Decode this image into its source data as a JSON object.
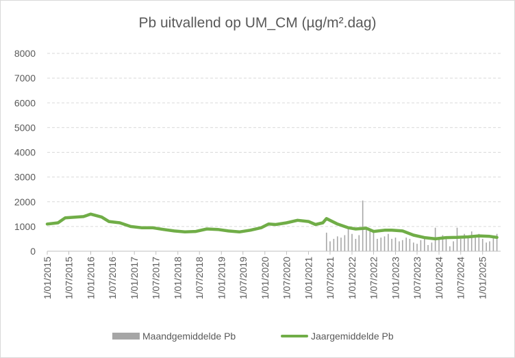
{
  "chart_data": {
    "type": "bar",
    "title": "Pb uitvallend op UM_CM (µg/m².dag)",
    "xlabel": "",
    "ylabel": "",
    "ylim": [
      0,
      8000
    ],
    "yticks": [
      0,
      1000,
      2000,
      3000,
      4000,
      5000,
      6000,
      7000,
      8000
    ],
    "x_range": [
      "2015-01-01",
      "2025-06-01"
    ],
    "xticks": [
      "2015-01-01",
      "2015-07-01",
      "2016-01-01",
      "2016-07-01",
      "2017-01-01",
      "2017-07-01",
      "2018-01-01",
      "2018-07-01",
      "2019-01-01",
      "2019-07-01",
      "2020-01-01",
      "2020-07-01",
      "2021-01-01",
      "2021-07-01",
      "2022-01-01",
      "2022-07-01",
      "2023-01-01",
      "2023-07-01",
      "2024-01-01",
      "2024-07-01",
      "2025-01-01"
    ],
    "xtick_labels": [
      "1/01/2015",
      "1/07/2015",
      "1/01/2016",
      "1/07/2016",
      "1/01/2017",
      "1/07/2017",
      "1/01/2018",
      "1/07/2018",
      "1/01/2019",
      "1/07/2019",
      "1/01/2020",
      "1/07/2020",
      "1/01/2021",
      "1/07/2021",
      "1/01/2022",
      "1/07/2022",
      "1/01/2023",
      "1/07/2023",
      "1/01/2024",
      "1/07/2024",
      "1/01/2025"
    ],
    "grid": true,
    "legend_position": "bottom",
    "series": [
      {
        "name": "Maandgemiddelde Pb",
        "kind": "bar",
        "color": "#a6a6a6",
        "x": [
          "2021-06-01",
          "2021-07-01",
          "2021-08-01",
          "2021-09-01",
          "2021-10-01",
          "2021-11-01",
          "2021-12-01",
          "2022-01-01",
          "2022-02-01",
          "2022-03-01",
          "2022-04-01",
          "2022-05-01",
          "2022-06-01",
          "2022-07-01",
          "2022-08-01",
          "2022-09-01",
          "2022-10-01",
          "2022-11-01",
          "2022-12-01",
          "2023-01-01",
          "2023-02-01",
          "2023-03-01",
          "2023-04-01",
          "2023-05-01",
          "2023-06-01",
          "2023-07-01",
          "2023-08-01",
          "2023-09-01",
          "2023-10-01",
          "2023-11-01",
          "2023-12-01",
          "2024-01-01",
          "2024-02-01",
          "2024-03-01",
          "2024-04-01",
          "2024-05-01",
          "2024-06-01",
          "2024-07-01",
          "2024-08-01",
          "2024-09-01",
          "2024-10-01",
          "2024-11-01",
          "2024-12-01",
          "2025-01-01",
          "2025-02-01",
          "2025-03-01",
          "2025-04-01",
          "2025-05-01"
        ],
        "values": [
          750,
          400,
          500,
          600,
          550,
          650,
          900,
          700,
          500,
          650,
          2050,
          900,
          800,
          750,
          500,
          550,
          600,
          700,
          500,
          550,
          400,
          450,
          550,
          500,
          350,
          300,
          450,
          550,
          250,
          350,
          950,
          550,
          650,
          500,
          200,
          400,
          950,
          500,
          700,
          550,
          800,
          600,
          700,
          500,
          350,
          400,
          550,
          700
        ]
      },
      {
        "name": "Jaargemiddelde Pb",
        "kind": "line",
        "color": "#70ad47",
        "x": [
          "2015-01-01",
          "2015-04-01",
          "2015-06-01",
          "2015-09-01",
          "2015-11-01",
          "2016-01-01",
          "2016-04-01",
          "2016-06-01",
          "2016-09-01",
          "2016-12-01",
          "2017-03-01",
          "2017-06-01",
          "2017-09-01",
          "2017-12-01",
          "2018-03-01",
          "2018-06-01",
          "2018-09-01",
          "2018-12-01",
          "2019-03-01",
          "2019-06-01",
          "2019-09-01",
          "2019-12-01",
          "2020-02-01",
          "2020-04-01",
          "2020-07-01",
          "2020-10-01",
          "2021-01-01",
          "2021-03-01",
          "2021-05-01",
          "2021-06-01",
          "2021-09-01",
          "2021-12-01",
          "2022-02-01",
          "2022-05-01",
          "2022-07-01",
          "2022-10-01",
          "2022-12-01",
          "2023-03-01",
          "2023-06-01",
          "2023-09-01",
          "2023-12-01",
          "2024-03-01",
          "2024-06-01",
          "2024-09-01",
          "2024-12-01",
          "2025-03-01",
          "2025-05-01"
        ],
        "values": [
          1100,
          1150,
          1350,
          1380,
          1400,
          1500,
          1380,
          1200,
          1150,
          1000,
          950,
          950,
          880,
          820,
          780,
          800,
          900,
          880,
          820,
          780,
          850,
          950,
          1100,
          1080,
          1150,
          1250,
          1200,
          1080,
          1150,
          1320,
          1100,
          950,
          900,
          930,
          800,
          850,
          850,
          820,
          650,
          550,
          500,
          550,
          560,
          580,
          620,
          600,
          560
        ]
      }
    ]
  }
}
